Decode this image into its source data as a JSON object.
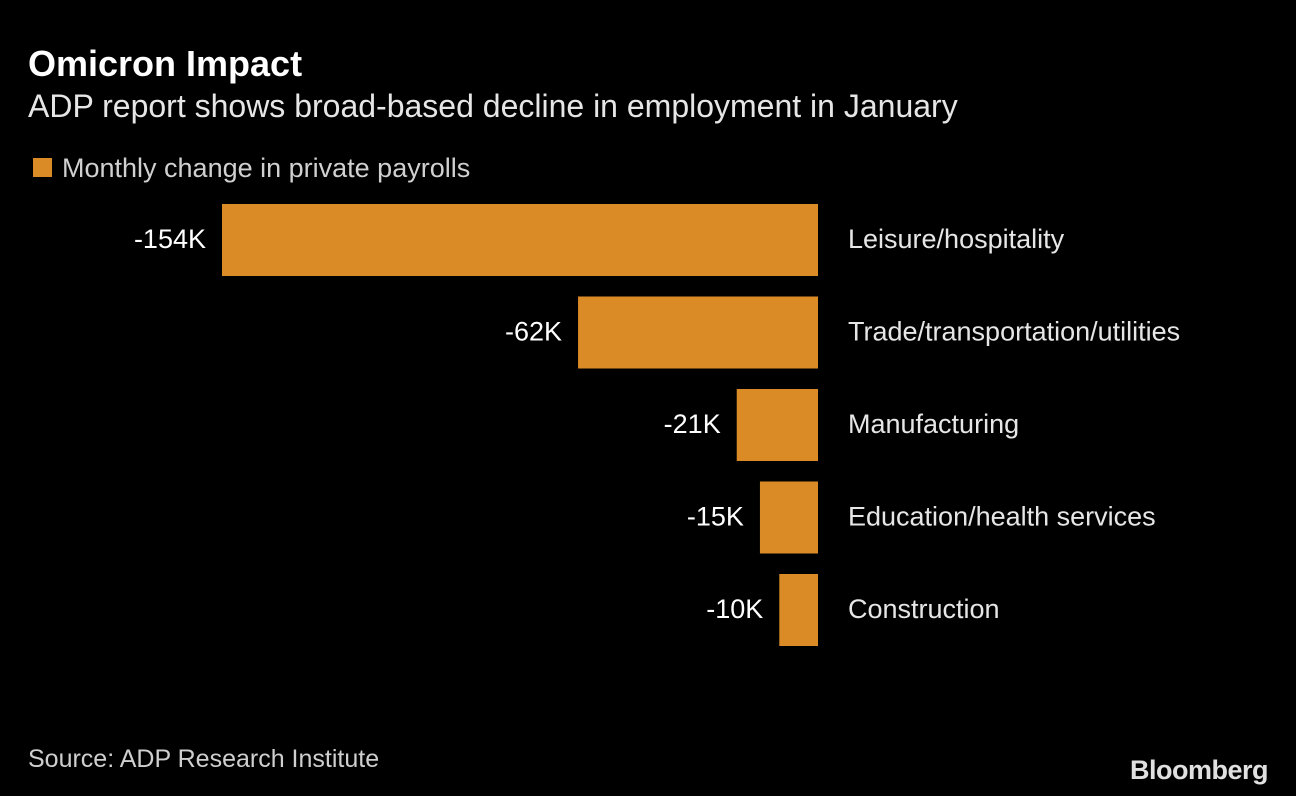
{
  "chart_data": {
    "type": "bar",
    "orientation": "horizontal",
    "title": "Omicron Impact",
    "subtitle": "ADP report shows broad-based decline in employment in January",
    "legend": [
      "Monthly change in private payrolls"
    ],
    "legend_placement": "top-left",
    "categories": [
      "Leisure/hospitality",
      "Trade/transportation/utilities",
      "Manufacturing",
      "Education/health services",
      "Construction"
    ],
    "values": [
      -154,
      -62,
      -21,
      -15,
      -10
    ],
    "value_labels": [
      "-154K",
      "-62K",
      "-21K",
      "-15K",
      "-10K"
    ],
    "unit": "K",
    "xlim": [
      -154,
      0
    ],
    "grid": false,
    "bar_color": "#DB8B26",
    "source": "Source: ADP Research Institute",
    "logo": "Bloomberg"
  }
}
